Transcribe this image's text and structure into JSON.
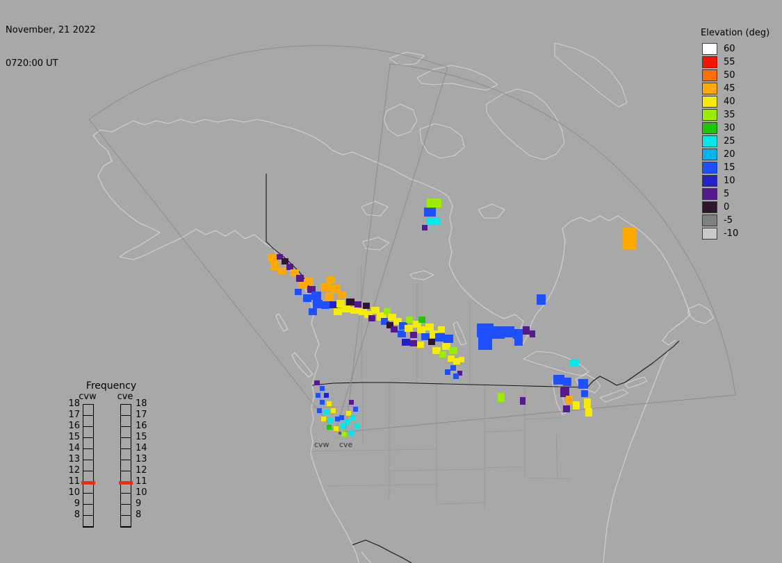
{
  "header": {
    "date_line1": "November, 21 2022",
    "date_line2": "0720:00 UT"
  },
  "elevation_legend": {
    "title": "Elevation (deg)",
    "entries": [
      {
        "label": "60",
        "color": "#ffffff"
      },
      {
        "label": "55",
        "color": "#f81400"
      },
      {
        "label": "50",
        "color": "#ff6e00"
      },
      {
        "label": "45",
        "color": "#ffaa00"
      },
      {
        "label": "40",
        "color": "#f5ec00"
      },
      {
        "label": "35",
        "color": "#9bed00"
      },
      {
        "label": "30",
        "color": "#1dc800"
      },
      {
        "label": "25",
        "color": "#00e8e8"
      },
      {
        "label": "20",
        "color": "#00b4f0"
      },
      {
        "label": "15",
        "color": "#1e50ff"
      },
      {
        "label": "10",
        "color": "#2222cd"
      },
      {
        "label": "5",
        "color": "#551a8b"
      },
      {
        "label": "0",
        "color": "#2e1530"
      },
      {
        "label": "-5",
        "color": "#808080"
      },
      {
        "label": "-10",
        "color": "#c9c9c9"
      }
    ]
  },
  "frequency_legend": {
    "title": "Frequency",
    "columns": [
      {
        "label": "cvw"
      },
      {
        "label": "cve"
      }
    ],
    "scale_labels": [
      "18",
      "17",
      "16",
      "15",
      "14",
      "13",
      "12",
      "11",
      "10",
      "9",
      "8"
    ],
    "marker_color": "#ff2800",
    "markers": {
      "cvw": 11,
      "cve": 11
    }
  },
  "radar_sites": {
    "labels": [
      "cvw",
      "cve"
    ]
  },
  "map": {
    "colors": {
      "background": "#a8a8a8",
      "coastline": "#d4d4d4",
      "state_border": "#969696",
      "international_border": "#141414",
      "fov_outline": "#8a8a8a"
    }
  },
  "chart_data": {
    "type": "heatmap",
    "value_label": "Elevation (deg)",
    "units": "deg",
    "note": "radar backscatter cells [x,y,w,h,elevation_deg]",
    "cells": [
      [
        385,
        366,
        14,
        11,
        45
      ],
      [
        389,
        377,
        13,
        12,
        45
      ],
      [
        398,
        366,
        9,
        8,
        5
      ],
      [
        405,
        372,
        10,
        9,
        0
      ],
      [
        400,
        385,
        12,
        10,
        45
      ],
      [
        412,
        380,
        10,
        9,
        5
      ],
      [
        418,
        388,
        12,
        10,
        45
      ],
      [
        426,
        396,
        11,
        10,
        5
      ],
      [
        430,
        406,
        12,
        10,
        45
      ],
      [
        424,
        416,
        10,
        9,
        15
      ],
      [
        438,
        400,
        12,
        11,
        45
      ],
      [
        442,
        412,
        12,
        10,
        5
      ],
      [
        436,
        424,
        12,
        11,
        15
      ],
      [
        448,
        420,
        14,
        12,
        15
      ],
      [
        450,
        432,
        14,
        12,
        15
      ],
      [
        444,
        444,
        12,
        10,
        15
      ],
      [
        462,
        408,
        14,
        11,
        45
      ],
      [
        470,
        398,
        12,
        10,
        45
      ],
      [
        476,
        410,
        14,
        12,
        45
      ],
      [
        468,
        422,
        12,
        11,
        45
      ],
      [
        462,
        434,
        12,
        11,
        15
      ],
      [
        474,
        434,
        12,
        10,
        10
      ],
      [
        486,
        420,
        12,
        10,
        45
      ],
      [
        484,
        432,
        12,
        11,
        40
      ],
      [
        480,
        444,
        12,
        10,
        40
      ],
      [
        492,
        440,
        12,
        10,
        40
      ],
      [
        498,
        430,
        12,
        10,
        0
      ],
      [
        504,
        442,
        12,
        10,
        40
      ],
      [
        510,
        434,
        10,
        9,
        5
      ],
      [
        516,
        444,
        12,
        10,
        40
      ],
      [
        524,
        448,
        12,
        10,
        40
      ],
      [
        522,
        436,
        10,
        9,
        0
      ],
      [
        534,
        442,
        12,
        10,
        40
      ],
      [
        530,
        454,
        10,
        9,
        5
      ],
      [
        542,
        450,
        14,
        12,
        40
      ],
      [
        552,
        444,
        10,
        9,
        35
      ],
      [
        548,
        458,
        12,
        10,
        15
      ],
      [
        558,
        452,
        12,
        10,
        40
      ],
      [
        556,
        464,
        10,
        9,
        0
      ],
      [
        566,
        458,
        12,
        10,
        40
      ],
      [
        562,
        470,
        10,
        9,
        5
      ],
      [
        574,
        464,
        12,
        11,
        15
      ],
      [
        572,
        476,
        12,
        10,
        15
      ],
      [
        584,
        456,
        10,
        9,
        35
      ],
      [
        582,
        468,
        12,
        10,
        40
      ],
      [
        590,
        478,
        10,
        9,
        5
      ],
      [
        594,
        462,
        12,
        10,
        40
      ],
      [
        602,
        456,
        10,
        9,
        30
      ],
      [
        600,
        470,
        12,
        10,
        40
      ],
      [
        606,
        480,
        12,
        10,
        15
      ],
      [
        612,
        466,
        12,
        10,
        40
      ],
      [
        618,
        476,
        12,
        11,
        40
      ],
      [
        616,
        488,
        10,
        9,
        0
      ],
      [
        626,
        480,
        14,
        12,
        15
      ],
      [
        630,
        470,
        10,
        9,
        40
      ],
      [
        638,
        482,
        14,
        12,
        15
      ],
      [
        636,
        494,
        12,
        10,
        40
      ],
      [
        646,
        500,
        12,
        10,
        35
      ],
      [
        644,
        512,
        10,
        9,
        40
      ],
      [
        652,
        516,
        10,
        9,
        40
      ],
      [
        648,
        526,
        8,
        8,
        15
      ],
      [
        640,
        532,
        8,
        8,
        15
      ],
      [
        658,
        534,
        7,
        7,
        5
      ],
      [
        578,
        488,
        12,
        10,
        10
      ],
      [
        590,
        490,
        10,
        9,
        5
      ],
      [
        600,
        492,
        10,
        9,
        40
      ],
      [
        622,
        500,
        12,
        10,
        40
      ],
      [
        632,
        506,
        10,
        9,
        35
      ],
      [
        660,
        514,
        8,
        8,
        40
      ],
      [
        686,
        466,
        24,
        20,
        15
      ],
      [
        708,
        470,
        18,
        18,
        15
      ],
      [
        688,
        486,
        20,
        18,
        15
      ],
      [
        724,
        470,
        16,
        16,
        15
      ],
      [
        738,
        474,
        14,
        14,
        15
      ],
      [
        752,
        470,
        10,
        12,
        5
      ],
      [
        740,
        488,
        12,
        10,
        15
      ],
      [
        762,
        476,
        8,
        10,
        5
      ],
      [
        772,
        424,
        13,
        15,
        15
      ],
      [
        614,
        286,
        21,
        13,
        35
      ],
      [
        610,
        299,
        17,
        13,
        15
      ],
      [
        614,
        313,
        19,
        11,
        25
      ],
      [
        607,
        324,
        8,
        8,
        5
      ],
      [
        896,
        328,
        19,
        31,
        45
      ],
      [
        796,
        540,
        16,
        14,
        15
      ],
      [
        810,
        544,
        12,
        12,
        15
      ],
      [
        806,
        558,
        13,
        14,
        5
      ],
      [
        814,
        570,
        10,
        12,
        45
      ],
      [
        810,
        584,
        10,
        10,
        5
      ],
      [
        824,
        578,
        10,
        12,
        40
      ],
      [
        832,
        546,
        14,
        14,
        15
      ],
      [
        836,
        562,
        10,
        10,
        15
      ],
      [
        840,
        574,
        10,
        14,
        40
      ],
      [
        842,
        588,
        10,
        12,
        40
      ],
      [
        820,
        518,
        13,
        9,
        25
      ],
      [
        716,
        566,
        10,
        13,
        35
      ],
      [
        748,
        572,
        8,
        11,
        5
      ],
      [
        652,
        538,
        8,
        8,
        15
      ],
      [
        452,
        548,
        8,
        7,
        5
      ],
      [
        460,
        556,
        7,
        7,
        15
      ],
      [
        454,
        566,
        7,
        7,
        15
      ],
      [
        466,
        566,
        7,
        7,
        10
      ],
      [
        460,
        576,
        7,
        7,
        15
      ],
      [
        470,
        578,
        7,
        7,
        40
      ],
      [
        456,
        588,
        7,
        7,
        15
      ],
      [
        466,
        590,
        7,
        7,
        25
      ],
      [
        476,
        588,
        7,
        7,
        40
      ],
      [
        462,
        600,
        7,
        7,
        40
      ],
      [
        472,
        602,
        7,
        7,
        25
      ],
      [
        482,
        600,
        7,
        7,
        15
      ],
      [
        470,
        612,
        7,
        7,
        30
      ],
      [
        480,
        614,
        7,
        7,
        40
      ],
      [
        490,
        610,
        7,
        7,
        25
      ],
      [
        488,
        598,
        7,
        7,
        15
      ],
      [
        496,
        604,
        7,
        7,
        25
      ],
      [
        498,
        592,
        7,
        7,
        40
      ],
      [
        504,
        598,
        7,
        7,
        25
      ],
      [
        508,
        586,
        7,
        7,
        15
      ],
      [
        502,
        576,
        7,
        7,
        5
      ],
      [
        510,
        610,
        7,
        7,
        25
      ],
      [
        492,
        622,
        7,
        7,
        35
      ],
      [
        502,
        620,
        7,
        7,
        25
      ]
    ]
  }
}
